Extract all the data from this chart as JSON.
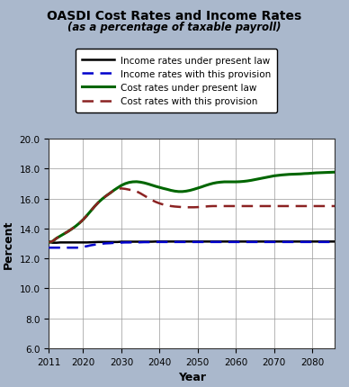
{
  "title": "OASDI Cost Rates and Income Rates",
  "subtitle": "(as a percentage of taxable payroll)",
  "xlabel": "Year",
  "ylabel": "Percent",
  "bg_color": "#aab8cc",
  "plot_bg_color": "#ffffff",
  "ylim": [
    6.0,
    20.0
  ],
  "yticks": [
    6.0,
    8.0,
    10.0,
    12.0,
    14.0,
    16.0,
    18.0,
    20.0
  ],
  "xlim": [
    2011,
    2086
  ],
  "xticks": [
    2011,
    2020,
    2030,
    2040,
    2050,
    2060,
    2070,
    2080
  ],
  "years": [
    2011,
    2012,
    2013,
    2014,
    2015,
    2016,
    2017,
    2018,
    2019,
    2020,
    2021,
    2022,
    2023,
    2024,
    2025,
    2026,
    2027,
    2028,
    2029,
    2030,
    2031,
    2032,
    2033,
    2034,
    2035,
    2036,
    2037,
    2038,
    2039,
    2040,
    2041,
    2042,
    2043,
    2044,
    2045,
    2046,
    2047,
    2048,
    2049,
    2050,
    2051,
    2052,
    2053,
    2054,
    2055,
    2056,
    2057,
    2058,
    2059,
    2060,
    2061,
    2062,
    2063,
    2064,
    2065,
    2066,
    2067,
    2068,
    2069,
    2070,
    2071,
    2072,
    2073,
    2074,
    2075,
    2076,
    2077,
    2078,
    2079,
    2080,
    2081,
    2082,
    2083,
    2084,
    2085,
    2086
  ],
  "income_present_law": [
    13.1,
    13.05,
    13.05,
    13.07,
    13.07,
    13.07,
    13.07,
    13.07,
    13.07,
    13.07,
    13.07,
    13.08,
    13.09,
    13.1,
    13.1,
    13.1,
    13.1,
    13.1,
    13.1,
    13.12,
    13.12,
    13.12,
    13.12,
    13.12,
    13.12,
    13.12,
    13.12,
    13.12,
    13.13,
    13.13,
    13.13,
    13.13,
    13.13,
    13.13,
    13.13,
    13.13,
    13.13,
    13.13,
    13.13,
    13.13,
    13.13,
    13.13,
    13.13,
    13.13,
    13.13,
    13.13,
    13.13,
    13.13,
    13.13,
    13.13,
    13.13,
    13.13,
    13.13,
    13.13,
    13.13,
    13.13,
    13.13,
    13.13,
    13.13,
    13.13,
    13.13,
    13.13,
    13.13,
    13.13,
    13.13,
    13.13,
    13.13,
    13.13,
    13.13,
    13.13,
    13.13,
    13.13,
    13.13,
    13.13,
    13.13,
    13.13
  ],
  "income_provision": [
    12.72,
    12.72,
    12.72,
    12.72,
    12.72,
    12.72,
    12.72,
    12.72,
    12.72,
    12.78,
    12.82,
    12.88,
    12.92,
    12.96,
    12.99,
    13.01,
    13.02,
    13.04,
    13.05,
    13.06,
    13.07,
    13.07,
    13.08,
    13.08,
    13.08,
    13.09,
    13.09,
    13.09,
    13.1,
    13.1,
    13.1,
    13.1,
    13.1,
    13.1,
    13.1,
    13.1,
    13.1,
    13.1,
    13.1,
    13.1,
    13.1,
    13.1,
    13.1,
    13.1,
    13.1,
    13.1,
    13.1,
    13.1,
    13.1,
    13.1,
    13.1,
    13.1,
    13.1,
    13.1,
    13.1,
    13.1,
    13.1,
    13.1,
    13.1,
    13.1,
    13.1,
    13.1,
    13.1,
    13.1,
    13.1,
    13.1,
    13.1,
    13.1,
    13.1,
    13.1,
    13.1,
    13.1,
    13.1,
    13.1,
    13.1,
    13.1
  ],
  "cost_present_law": [
    13.08,
    13.15,
    13.35,
    13.5,
    13.65,
    13.8,
    13.97,
    14.15,
    14.36,
    14.6,
    14.88,
    15.18,
    15.48,
    15.75,
    15.98,
    16.18,
    16.36,
    16.55,
    16.72,
    16.88,
    17.0,
    17.08,
    17.12,
    17.13,
    17.1,
    17.05,
    16.98,
    16.9,
    16.82,
    16.75,
    16.68,
    16.62,
    16.55,
    16.5,
    16.47,
    16.47,
    16.5,
    16.55,
    16.62,
    16.7,
    16.78,
    16.87,
    16.95,
    17.02,
    17.07,
    17.1,
    17.12,
    17.12,
    17.12,
    17.12,
    17.13,
    17.15,
    17.18,
    17.22,
    17.27,
    17.32,
    17.37,
    17.42,
    17.47,
    17.52,
    17.55,
    17.58,
    17.6,
    17.62,
    17.63,
    17.64,
    17.65,
    17.67,
    17.68,
    17.7,
    17.72,
    17.73,
    17.74,
    17.75,
    17.76,
    17.77
  ],
  "cost_provision": [
    13.08,
    13.15,
    13.35,
    13.5,
    13.65,
    13.8,
    13.97,
    14.15,
    14.36,
    14.6,
    14.88,
    15.18,
    15.48,
    15.75,
    15.98,
    16.18,
    16.36,
    16.55,
    16.65,
    16.68,
    16.65,
    16.6,
    16.55,
    16.48,
    16.35,
    16.2,
    16.05,
    15.9,
    15.78,
    15.68,
    15.6,
    15.55,
    15.5,
    15.47,
    15.45,
    15.43,
    15.42,
    15.42,
    15.42,
    15.43,
    15.45,
    15.47,
    15.49,
    15.5,
    15.5,
    15.5,
    15.5,
    15.5,
    15.5,
    15.5,
    15.5,
    15.5,
    15.5,
    15.5,
    15.5,
    15.5,
    15.5,
    15.5,
    15.5,
    15.5,
    15.5,
    15.5,
    15.5,
    15.5,
    15.5,
    15.5,
    15.5,
    15.5,
    15.5,
    15.5,
    15.5,
    15.5,
    15.5,
    15.5,
    15.5,
    15.5
  ],
  "color_income_present": "#000000",
  "color_income_provision": "#0000cc",
  "color_cost_present": "#006600",
  "color_cost_provision": "#8b2222",
  "legend_labels": [
    "Income rates under present law",
    "Income rates with this provision",
    "Cost rates under present law",
    "Cost rates with this provision"
  ]
}
